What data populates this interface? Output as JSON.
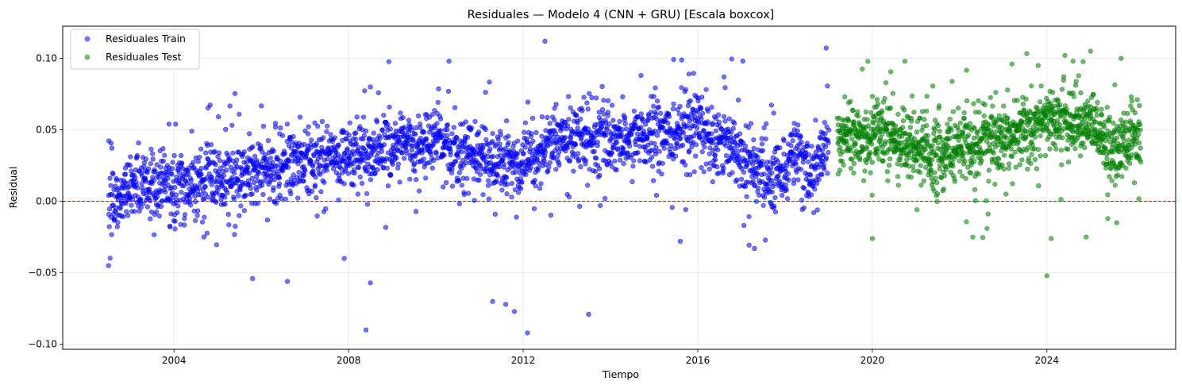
{
  "chart_data": {
    "type": "scatter",
    "title": "Residuales — Modelo 4 (CNN + GRU) [Escala boxcox]",
    "xlabel": "Tiempo",
    "ylabel": "Residual",
    "xlim": [
      2001.45,
      2026.95
    ],
    "ylim": [
      -0.1,
      0.1
    ],
    "x_ticks": [
      2004,
      2008,
      2012,
      2016,
      2020,
      2024
    ],
    "x_tick_labels": [
      "2004",
      "2008",
      "2012",
      "2016",
      "2020",
      "2024"
    ],
    "y_ticks": [
      -0.1,
      -0.05,
      0.0,
      0.05,
      0.1
    ],
    "y_tick_labels": [
      "−0.10",
      "−0.05",
      "0.00",
      "0.05",
      "0.10"
    ],
    "grid": true,
    "legend_position": "top-left",
    "reference_line": {
      "y": 0.0,
      "color": "#e31a1c",
      "style": "dashed"
    },
    "series": [
      {
        "name": "Residuales Train",
        "color": "#0000ff",
        "x_range": [
          2002.5,
          2019.0
        ],
        "trend": [
          [
            2002.5,
            -0.005
          ],
          [
            2003.0,
            0.012
          ],
          [
            2004.0,
            0.01
          ],
          [
            2005.0,
            0.015
          ],
          [
            2006.0,
            0.02
          ],
          [
            2007.0,
            0.028
          ],
          [
            2008.0,
            0.03
          ],
          [
            2009.0,
            0.038
          ],
          [
            2010.0,
            0.042
          ],
          [
            2011.0,
            0.03
          ],
          [
            2012.0,
            0.022
          ],
          [
            2012.7,
            0.045
          ],
          [
            2014.0,
            0.043
          ],
          [
            2015.0,
            0.045
          ],
          [
            2016.0,
            0.052
          ],
          [
            2017.0,
            0.035
          ],
          [
            2017.7,
            0.012
          ],
          [
            2018.3,
            0.038
          ],
          [
            2018.6,
            0.012
          ],
          [
            2019.0,
            0.045
          ]
        ],
        "outliers": [
          [
            2002.5,
            -0.045
          ],
          [
            2005.8,
            -0.054
          ],
          [
            2006.6,
            -0.056
          ],
          [
            2007.9,
            -0.04
          ],
          [
            2008.4,
            -0.09
          ],
          [
            2008.5,
            -0.057
          ],
          [
            2008.5,
            0.08
          ],
          [
            2010.3,
            0.098
          ],
          [
            2011.3,
            -0.07
          ],
          [
            2011.6,
            -0.072
          ],
          [
            2011.8,
            -0.077
          ],
          [
            2012.1,
            -0.092
          ],
          [
            2012.5,
            0.112
          ],
          [
            2013.5,
            -0.079
          ],
          [
            2014.7,
            0.088
          ],
          [
            2015.6,
            -0.028
          ],
          [
            2015.8,
            0.089
          ],
          [
            2016.6,
            0.087
          ],
          [
            2017.3,
            -0.033
          ]
        ]
      },
      {
        "name": "Residuales Test",
        "color": "#008000",
        "x_range": [
          2019.2,
          2026.15
        ],
        "trend": [
          [
            2019.2,
            0.045
          ],
          [
            2020.0,
            0.048
          ],
          [
            2021.0,
            0.04
          ],
          [
            2021.5,
            0.03
          ],
          [
            2022.0,
            0.04
          ],
          [
            2023.0,
            0.045
          ],
          [
            2024.0,
            0.057
          ],
          [
            2025.0,
            0.055
          ],
          [
            2025.5,
            0.035
          ],
          [
            2026.1,
            0.045
          ]
        ],
        "outliers": [
          [
            2020.0,
            -0.026
          ],
          [
            2023.2,
            0.096
          ],
          [
            2023.8,
            0.095
          ],
          [
            2024.0,
            -0.052
          ],
          [
            2024.1,
            -0.026
          ],
          [
            2024.6,
            0.098
          ],
          [
            2025.0,
            0.105
          ],
          [
            2025.7,
            0.1
          ],
          [
            2024.9,
            -0.025
          ],
          [
            2025.6,
            -0.015
          ]
        ]
      }
    ]
  }
}
